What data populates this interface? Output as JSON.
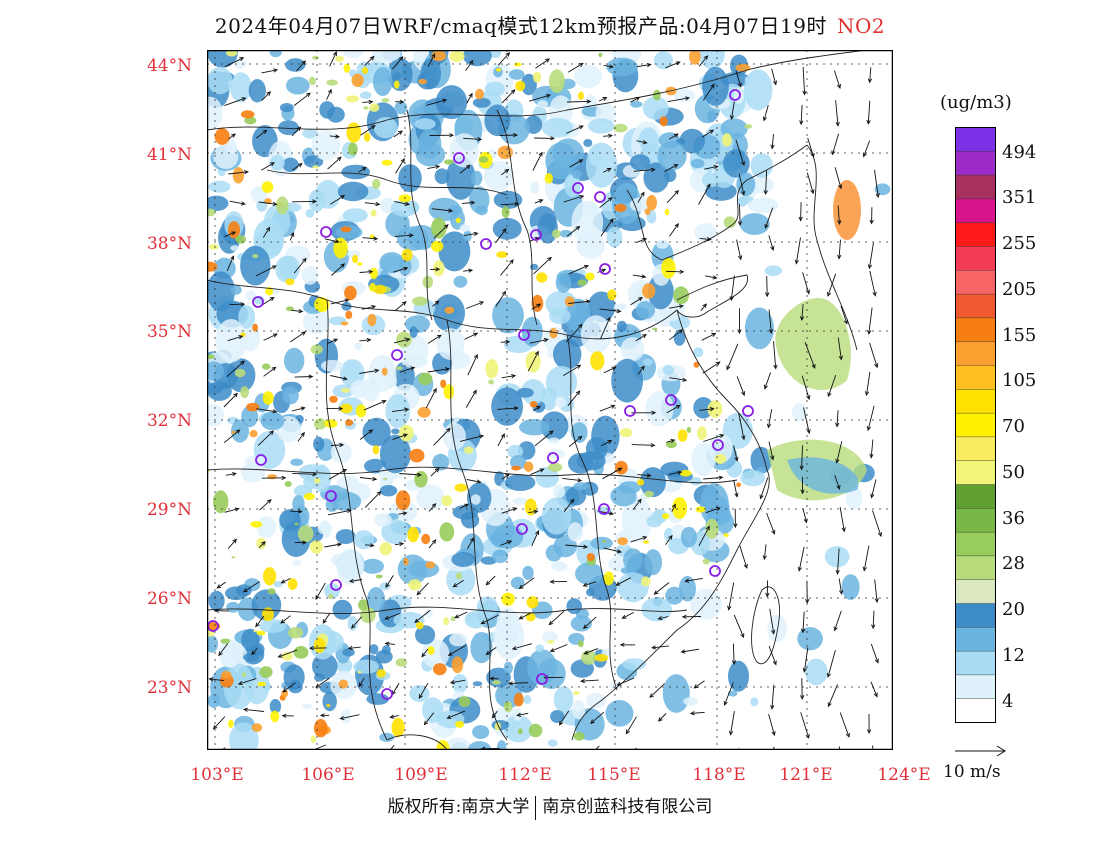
{
  "header": {
    "title": "2024年04月07日WRF/cmaq模式12km预报产品:04月07日19时",
    "pollutant": "NO2"
  },
  "map": {
    "lat_labels": [
      "44°N",
      "41°N",
      "38°N",
      "35°N",
      "32°N",
      "29°N",
      "26°N",
      "23°N"
    ],
    "lon_labels": [
      "103°E",
      "106°E",
      "109°E",
      "112°E",
      "115°E",
      "118°E",
      "121°E",
      "124°E"
    ],
    "label_color": "#e0303a"
  },
  "legend": {
    "unit": "(ug/m3)",
    "colors": [
      "#ffffff",
      "#dff1fb",
      "#a9dcf4",
      "#6bb4e0",
      "#3d8cc8",
      "#dbe8c0",
      "#b8dc7c",
      "#98cc5c",
      "#78b846",
      "#60a032",
      "#f0f478",
      "#f8ec60",
      "#fff200",
      "#ffe100",
      "#ffbf20",
      "#fba030",
      "#f77e10",
      "#ef5a30",
      "#f76565",
      "#f23c57",
      "#ff1a1a",
      "#d8148c",
      "#a8305e",
      "#9c2bc8",
      "#7b32e6"
    ],
    "labels": [
      "494",
      "351",
      "255",
      "205",
      "155",
      "105",
      "70",
      "50",
      "36",
      "28",
      "20",
      "12",
      "4"
    ]
  },
  "reference_vector": {
    "label": "10 m/s"
  },
  "footer": {
    "left": "版权所有:南京大学",
    "right": "南京创蓝科技有限公司"
  }
}
